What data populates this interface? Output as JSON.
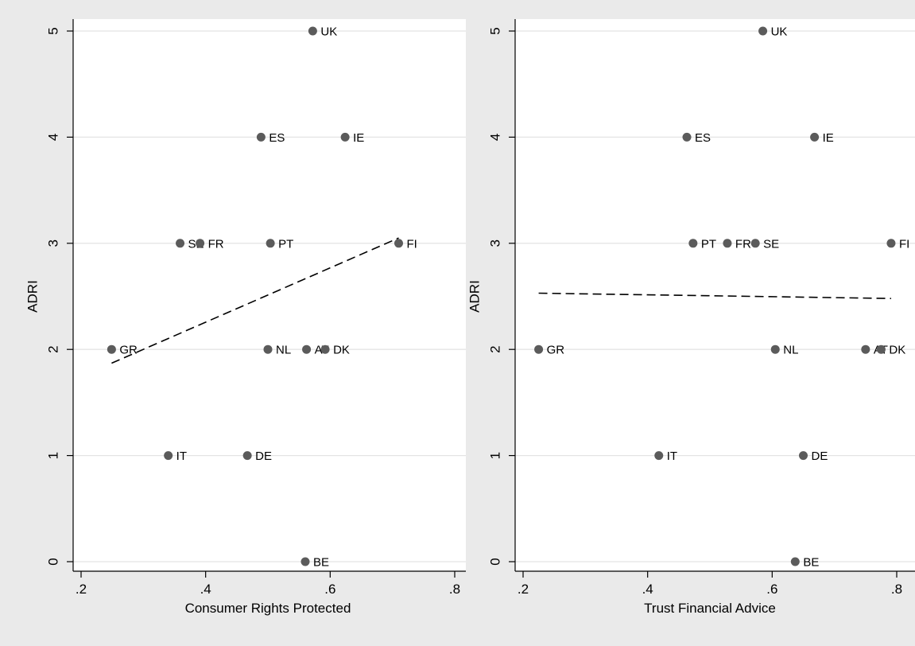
{
  "chart_data": [
    {
      "type": "scatter",
      "xlabel": "Consumer Rights Protected",
      "ylabel": "ADRI",
      "xlim": [
        0.2,
        0.8
      ],
      "ylim": [
        0,
        5
      ],
      "xticks": [
        ".2",
        ".4",
        ".6",
        ".8"
      ],
      "yticks": [
        "0",
        "1",
        "2",
        "3",
        "4",
        "5"
      ],
      "grid": true,
      "points": [
        {
          "label": "UK",
          "x": 0.572,
          "y": 5
        },
        {
          "label": "ES",
          "x": 0.489,
          "y": 4
        },
        {
          "label": "IE",
          "x": 0.624,
          "y": 4
        },
        {
          "label": "SE",
          "x": 0.359,
          "y": 3
        },
        {
          "label": "FR",
          "x": 0.391,
          "y": 3
        },
        {
          "label": "PT",
          "x": 0.504,
          "y": 3
        },
        {
          "label": "FI",
          "x": 0.71,
          "y": 3
        },
        {
          "label": "GR",
          "x": 0.249,
          "y": 2
        },
        {
          "label": "NL",
          "x": 0.5,
          "y": 2
        },
        {
          "label": "AT",
          "x": 0.562,
          "y": 2
        },
        {
          "label": "DK",
          "x": 0.592,
          "y": 2
        },
        {
          "label": "IT",
          "x": 0.34,
          "y": 1
        },
        {
          "label": "DE",
          "x": 0.467,
          "y": 1
        },
        {
          "label": "BE",
          "x": 0.56,
          "y": 0
        }
      ],
      "fit_line": {
        "x": [
          0.249,
          0.71
        ],
        "y": [
          1.87,
          3.05
        ]
      }
    },
    {
      "type": "scatter",
      "xlabel": "Trust Financial Advice",
      "ylabel": "ADRI",
      "xlim": [
        0.2,
        0.8
      ],
      "ylim": [
        0,
        5
      ],
      "xticks": [
        ".2",
        ".4",
        ".6",
        ".8"
      ],
      "yticks": [
        "0",
        "1",
        "2",
        "3",
        "4",
        "5"
      ],
      "grid": true,
      "points": [
        {
          "label": "UK",
          "x": 0.585,
          "y": 5
        },
        {
          "label": "ES",
          "x": 0.463,
          "y": 4
        },
        {
          "label": "IE",
          "x": 0.668,
          "y": 4
        },
        {
          "label": "PT",
          "x": 0.473,
          "y": 3
        },
        {
          "label": "FR",
          "x": 0.528,
          "y": 3
        },
        {
          "label": "SE",
          "x": 0.573,
          "y": 3
        },
        {
          "label": "FI",
          "x": 0.791,
          "y": 3
        },
        {
          "label": "GR",
          "x": 0.225,
          "y": 2
        },
        {
          "label": "NL",
          "x": 0.605,
          "y": 2
        },
        {
          "label": "AT",
          "x": 0.75,
          "y": 2
        },
        {
          "label": "DK",
          "x": 0.775,
          "y": 2
        },
        {
          "label": "IT",
          "x": 0.418,
          "y": 1
        },
        {
          "label": "DE",
          "x": 0.65,
          "y": 1
        },
        {
          "label": "BE",
          "x": 0.637,
          "y": 0
        }
      ],
      "fit_line": {
        "x": [
          0.225,
          0.791
        ],
        "y": [
          2.53,
          2.48
        ]
      }
    }
  ]
}
